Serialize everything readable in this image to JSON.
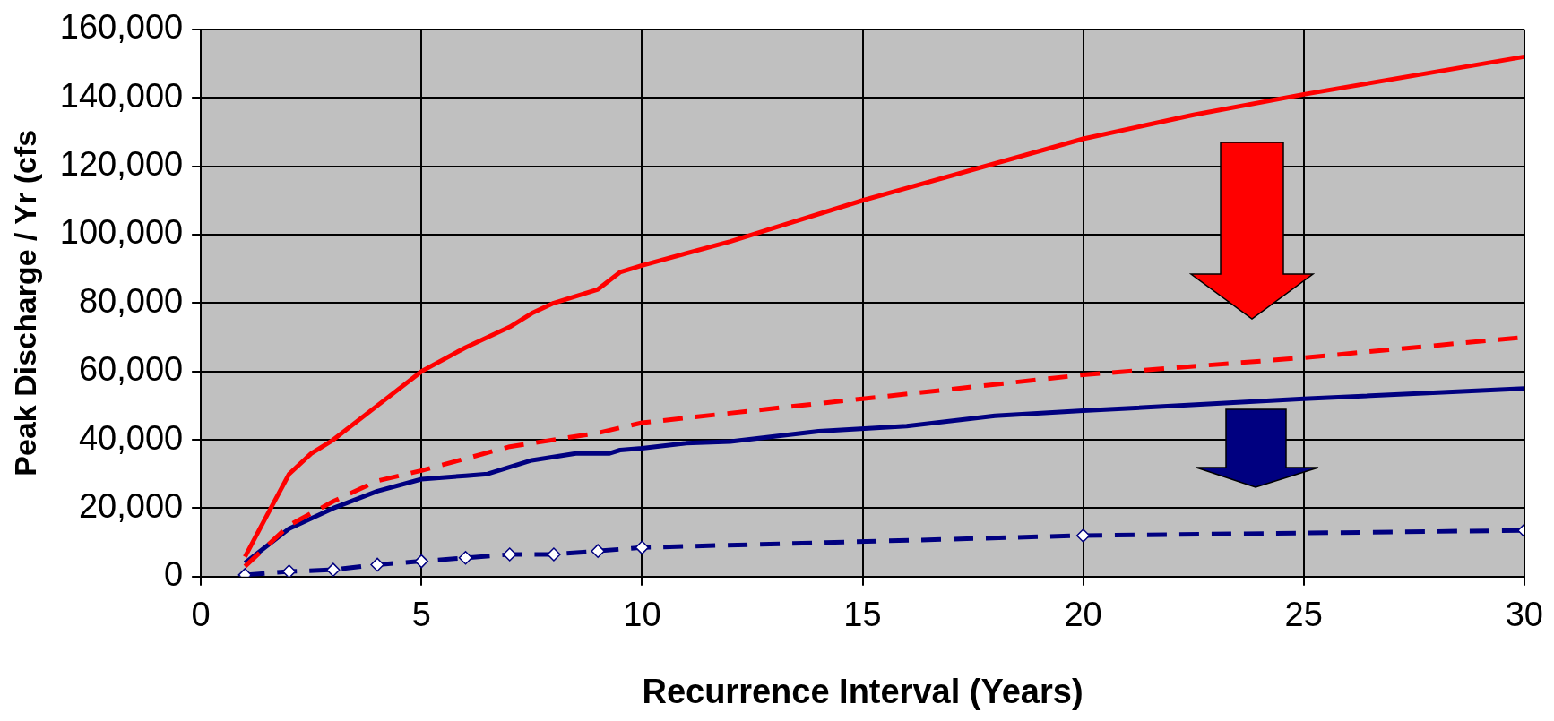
{
  "chart_data": {
    "type": "line",
    "xlabel": "Recurrence Interval (Years)",
    "ylabel": "Peak Discharge / Yr (cfs",
    "xlim": [
      0,
      30
    ],
    "xticks": [
      0,
      5,
      10,
      15,
      20,
      25,
      30
    ],
    "ylim": [
      0,
      160000
    ],
    "yticks": [
      0,
      {
        "value": 20000,
        "label": "20,000"
      },
      {
        "value": 40000,
        "label": "40,000"
      },
      {
        "value": 60000,
        "label": "60,000"
      },
      {
        "value": 80000,
        "label": "80,000"
      },
      {
        "value": 100000,
        "label": "100,000"
      },
      {
        "value": 120000,
        "label": "120,000"
      },
      {
        "value": 140000,
        "label": "140,000"
      },
      {
        "value": 160000,
        "label": "160,000"
      }
    ],
    "grid": true,
    "legend": false,
    "series": [
      {
        "color": "#ff0000",
        "line_style": "solid",
        "marker": "none",
        "x": [
          1,
          1.5,
          2,
          2.5,
          3,
          4,
          5,
          6,
          7,
          7.5,
          8,
          9,
          9.5,
          10,
          12,
          15,
          20,
          22.5,
          25,
          30
        ],
        "values": [
          5800,
          18000,
          30000,
          36000,
          40000,
          50000,
          60000,
          67000,
          73000,
          77000,
          80000,
          84000,
          89000,
          91000,
          98000,
          110000,
          128000,
          135000,
          141000,
          152000
        ]
      },
      {
        "color": "#ff0000",
        "line_style": "dashed",
        "marker": "none",
        "x": [
          1,
          2,
          3,
          4,
          5,
          7,
          9,
          10,
          15,
          20,
          25,
          30
        ],
        "values": [
          3000,
          15000,
          22000,
          28000,
          31000,
          38000,
          42000,
          45000,
          52000,
          59000,
          64000,
          70000
        ]
      },
      {
        "color": "#000080",
        "line_style": "solid",
        "marker": "none",
        "x": [
          1,
          2,
          3,
          4,
          5,
          6,
          6.5,
          7.5,
          8.5,
          9.25,
          9.5,
          10,
          11,
          12,
          14,
          16,
          18,
          20,
          25,
          30
        ],
        "values": [
          4000,
          14000,
          20000,
          25000,
          28500,
          29500,
          30000,
          34000,
          36000,
          36000,
          37000,
          37500,
          39000,
          39500,
          42500,
          44000,
          47000,
          48500,
          52000,
          55000
        ]
      },
      {
        "color": "#000080",
        "line_style": "dashed",
        "marker": "diamond",
        "x": [
          1,
          2,
          3,
          4,
          5,
          6,
          7,
          8,
          9,
          10,
          20,
          30
        ],
        "values": [
          500,
          1500,
          2000,
          3500,
          4500,
          5500,
          6500,
          6500,
          7500,
          8500,
          12000,
          13500
        ]
      }
    ]
  }
}
